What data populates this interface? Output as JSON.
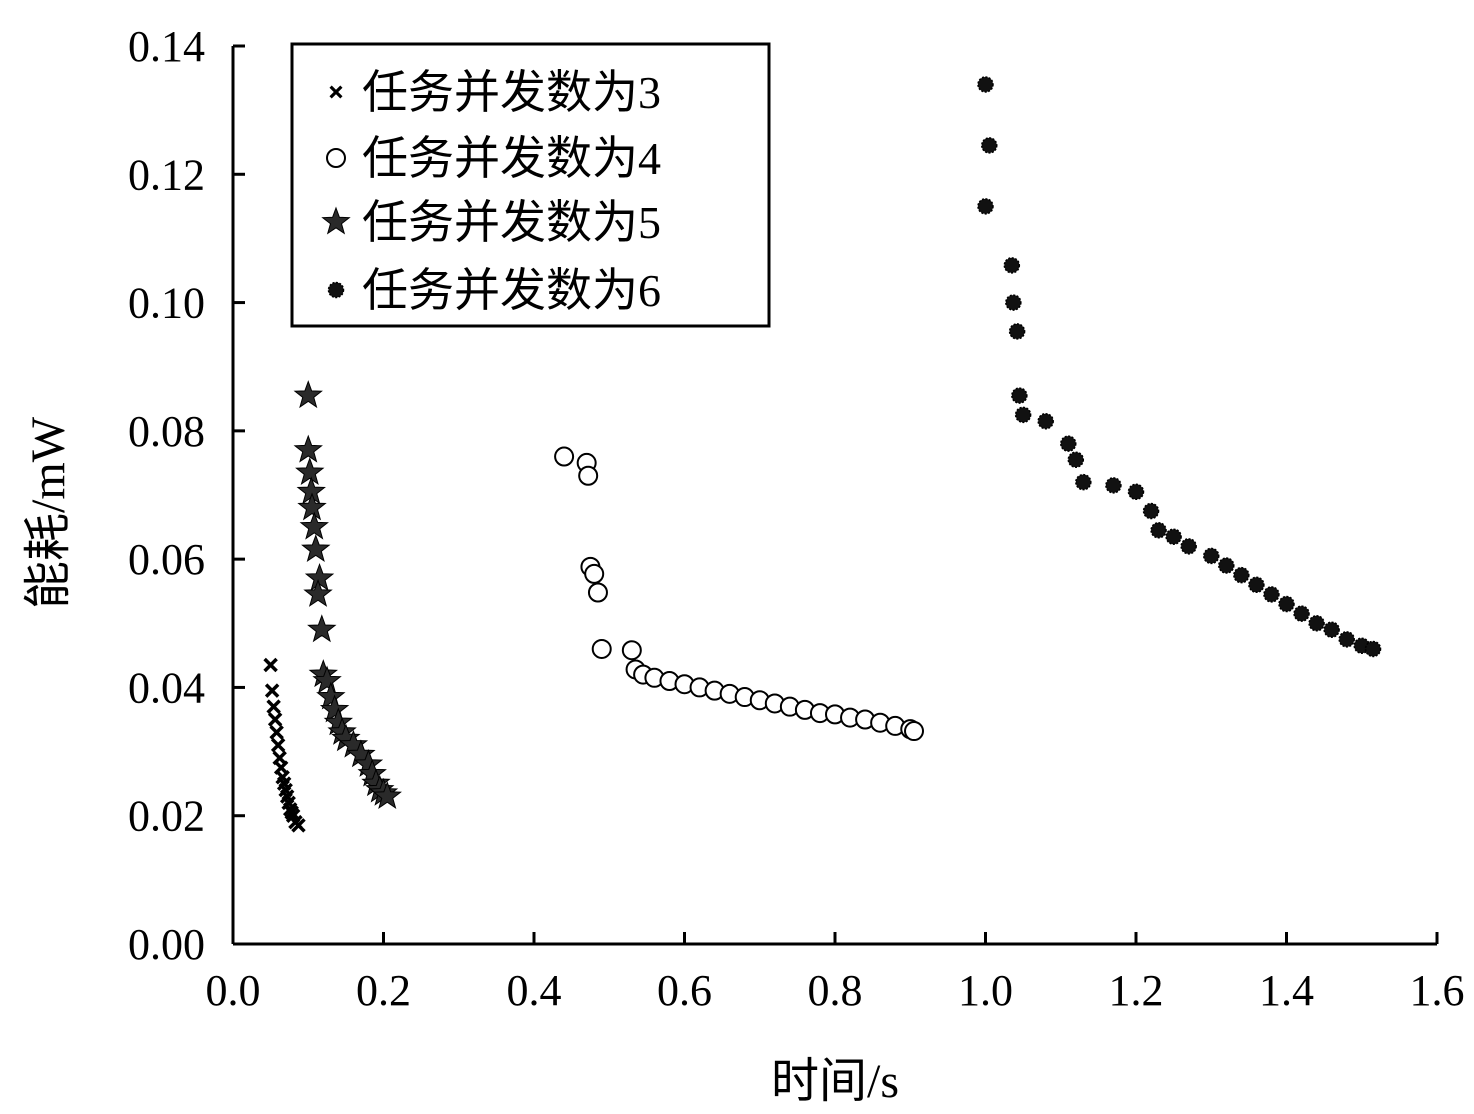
{
  "chart_data": {
    "type": "scatter",
    "xlabel": "时间/s",
    "ylabel": "能耗/mW",
    "xlim": [
      0,
      1.6
    ],
    "ylim": [
      0,
      0.14
    ],
    "xticks": [
      "0.0",
      "0.2",
      "0.4",
      "0.6",
      "0.8",
      "1.0",
      "1.2",
      "1.4",
      "1.6"
    ],
    "yticks": [
      "0.00",
      "0.02",
      "0.04",
      "0.06",
      "0.08",
      "0.10",
      "0.12",
      "0.14"
    ],
    "legend_position": "top-left",
    "grid": false,
    "series": [
      {
        "name": "任务并发数为3",
        "marker": "x",
        "points": [
          [
            0.05,
            0.0435
          ],
          [
            0.052,
            0.0395
          ],
          [
            0.054,
            0.037
          ],
          [
            0.056,
            0.035
          ],
          [
            0.058,
            0.033
          ],
          [
            0.06,
            0.031
          ],
          [
            0.062,
            0.029
          ],
          [
            0.064,
            0.0275
          ],
          [
            0.066,
            0.026
          ],
          [
            0.068,
            0.025
          ],
          [
            0.07,
            0.024
          ],
          [
            0.072,
            0.023
          ],
          [
            0.074,
            0.022
          ],
          [
            0.076,
            0.021
          ],
          [
            0.078,
            0.0205
          ],
          [
            0.08,
            0.02
          ],
          [
            0.083,
            0.019
          ],
          [
            0.087,
            0.0185
          ]
        ]
      },
      {
        "name": "任务并发数为4",
        "marker": "circle",
        "points": [
          [
            0.44,
            0.076
          ],
          [
            0.47,
            0.075
          ],
          [
            0.472,
            0.073
          ],
          [
            0.475,
            0.0588
          ],
          [
            0.48,
            0.0577
          ],
          [
            0.485,
            0.0548
          ],
          [
            0.49,
            0.046
          ],
          [
            0.53,
            0.0458
          ],
          [
            0.535,
            0.0428
          ],
          [
            0.545,
            0.042
          ],
          [
            0.56,
            0.0415
          ],
          [
            0.58,
            0.041
          ],
          [
            0.6,
            0.0405
          ],
          [
            0.62,
            0.04
          ],
          [
            0.64,
            0.0395
          ],
          [
            0.66,
            0.039
          ],
          [
            0.68,
            0.0385
          ],
          [
            0.7,
            0.038
          ],
          [
            0.72,
            0.0375
          ],
          [
            0.74,
            0.037
          ],
          [
            0.76,
            0.0365
          ],
          [
            0.78,
            0.036
          ],
          [
            0.8,
            0.0358
          ],
          [
            0.82,
            0.0353
          ],
          [
            0.84,
            0.035
          ],
          [
            0.86,
            0.0345
          ],
          [
            0.88,
            0.034
          ],
          [
            0.9,
            0.0335
          ],
          [
            0.905,
            0.0332
          ]
        ]
      },
      {
        "name": "任务并发数为5",
        "marker": "star",
        "points": [
          [
            0.1,
            0.0855
          ],
          [
            0.1,
            0.077
          ],
          [
            0.102,
            0.0735
          ],
          [
            0.104,
            0.0705
          ],
          [
            0.105,
            0.068
          ],
          [
            0.108,
            0.065
          ],
          [
            0.11,
            0.0615
          ],
          [
            0.115,
            0.057
          ],
          [
            0.113,
            0.0545
          ],
          [
            0.118,
            0.049
          ],
          [
            0.12,
            0.042
          ],
          [
            0.125,
            0.041
          ],
          [
            0.13,
            0.0385
          ],
          [
            0.135,
            0.0365
          ],
          [
            0.14,
            0.0345
          ],
          [
            0.145,
            0.033
          ],
          [
            0.15,
            0.032
          ],
          [
            0.16,
            0.031
          ],
          [
            0.17,
            0.0295
          ],
          [
            0.18,
            0.028
          ],
          [
            0.185,
            0.0265
          ],
          [
            0.19,
            0.025
          ],
          [
            0.195,
            0.024
          ],
          [
            0.2,
            0.0235
          ],
          [
            0.205,
            0.023
          ]
        ]
      },
      {
        "name": "任务并发数为6",
        "marker": "asterisk",
        "points": [
          [
            1.0,
            0.134
          ],
          [
            1.005,
            0.1245
          ],
          [
            1.0,
            0.115
          ],
          [
            1.035,
            0.1058
          ],
          [
            1.037,
            0.1
          ],
          [
            1.042,
            0.0955
          ],
          [
            1.045,
            0.0855
          ],
          [
            1.05,
            0.0825
          ],
          [
            1.08,
            0.0815
          ],
          [
            1.11,
            0.078
          ],
          [
            1.12,
            0.0755
          ],
          [
            1.13,
            0.072
          ],
          [
            1.17,
            0.0715
          ],
          [
            1.2,
            0.0705
          ],
          [
            1.22,
            0.0675
          ],
          [
            1.23,
            0.0645
          ],
          [
            1.25,
            0.0635
          ],
          [
            1.27,
            0.062
          ],
          [
            1.3,
            0.0605
          ],
          [
            1.32,
            0.059
          ],
          [
            1.34,
            0.0575
          ],
          [
            1.36,
            0.056
          ],
          [
            1.38,
            0.0545
          ],
          [
            1.4,
            0.053
          ],
          [
            1.42,
            0.0515
          ],
          [
            1.44,
            0.05
          ],
          [
            1.46,
            0.049
          ],
          [
            1.48,
            0.0475
          ],
          [
            1.5,
            0.0465
          ],
          [
            1.515,
            0.046
          ]
        ]
      }
    ]
  }
}
